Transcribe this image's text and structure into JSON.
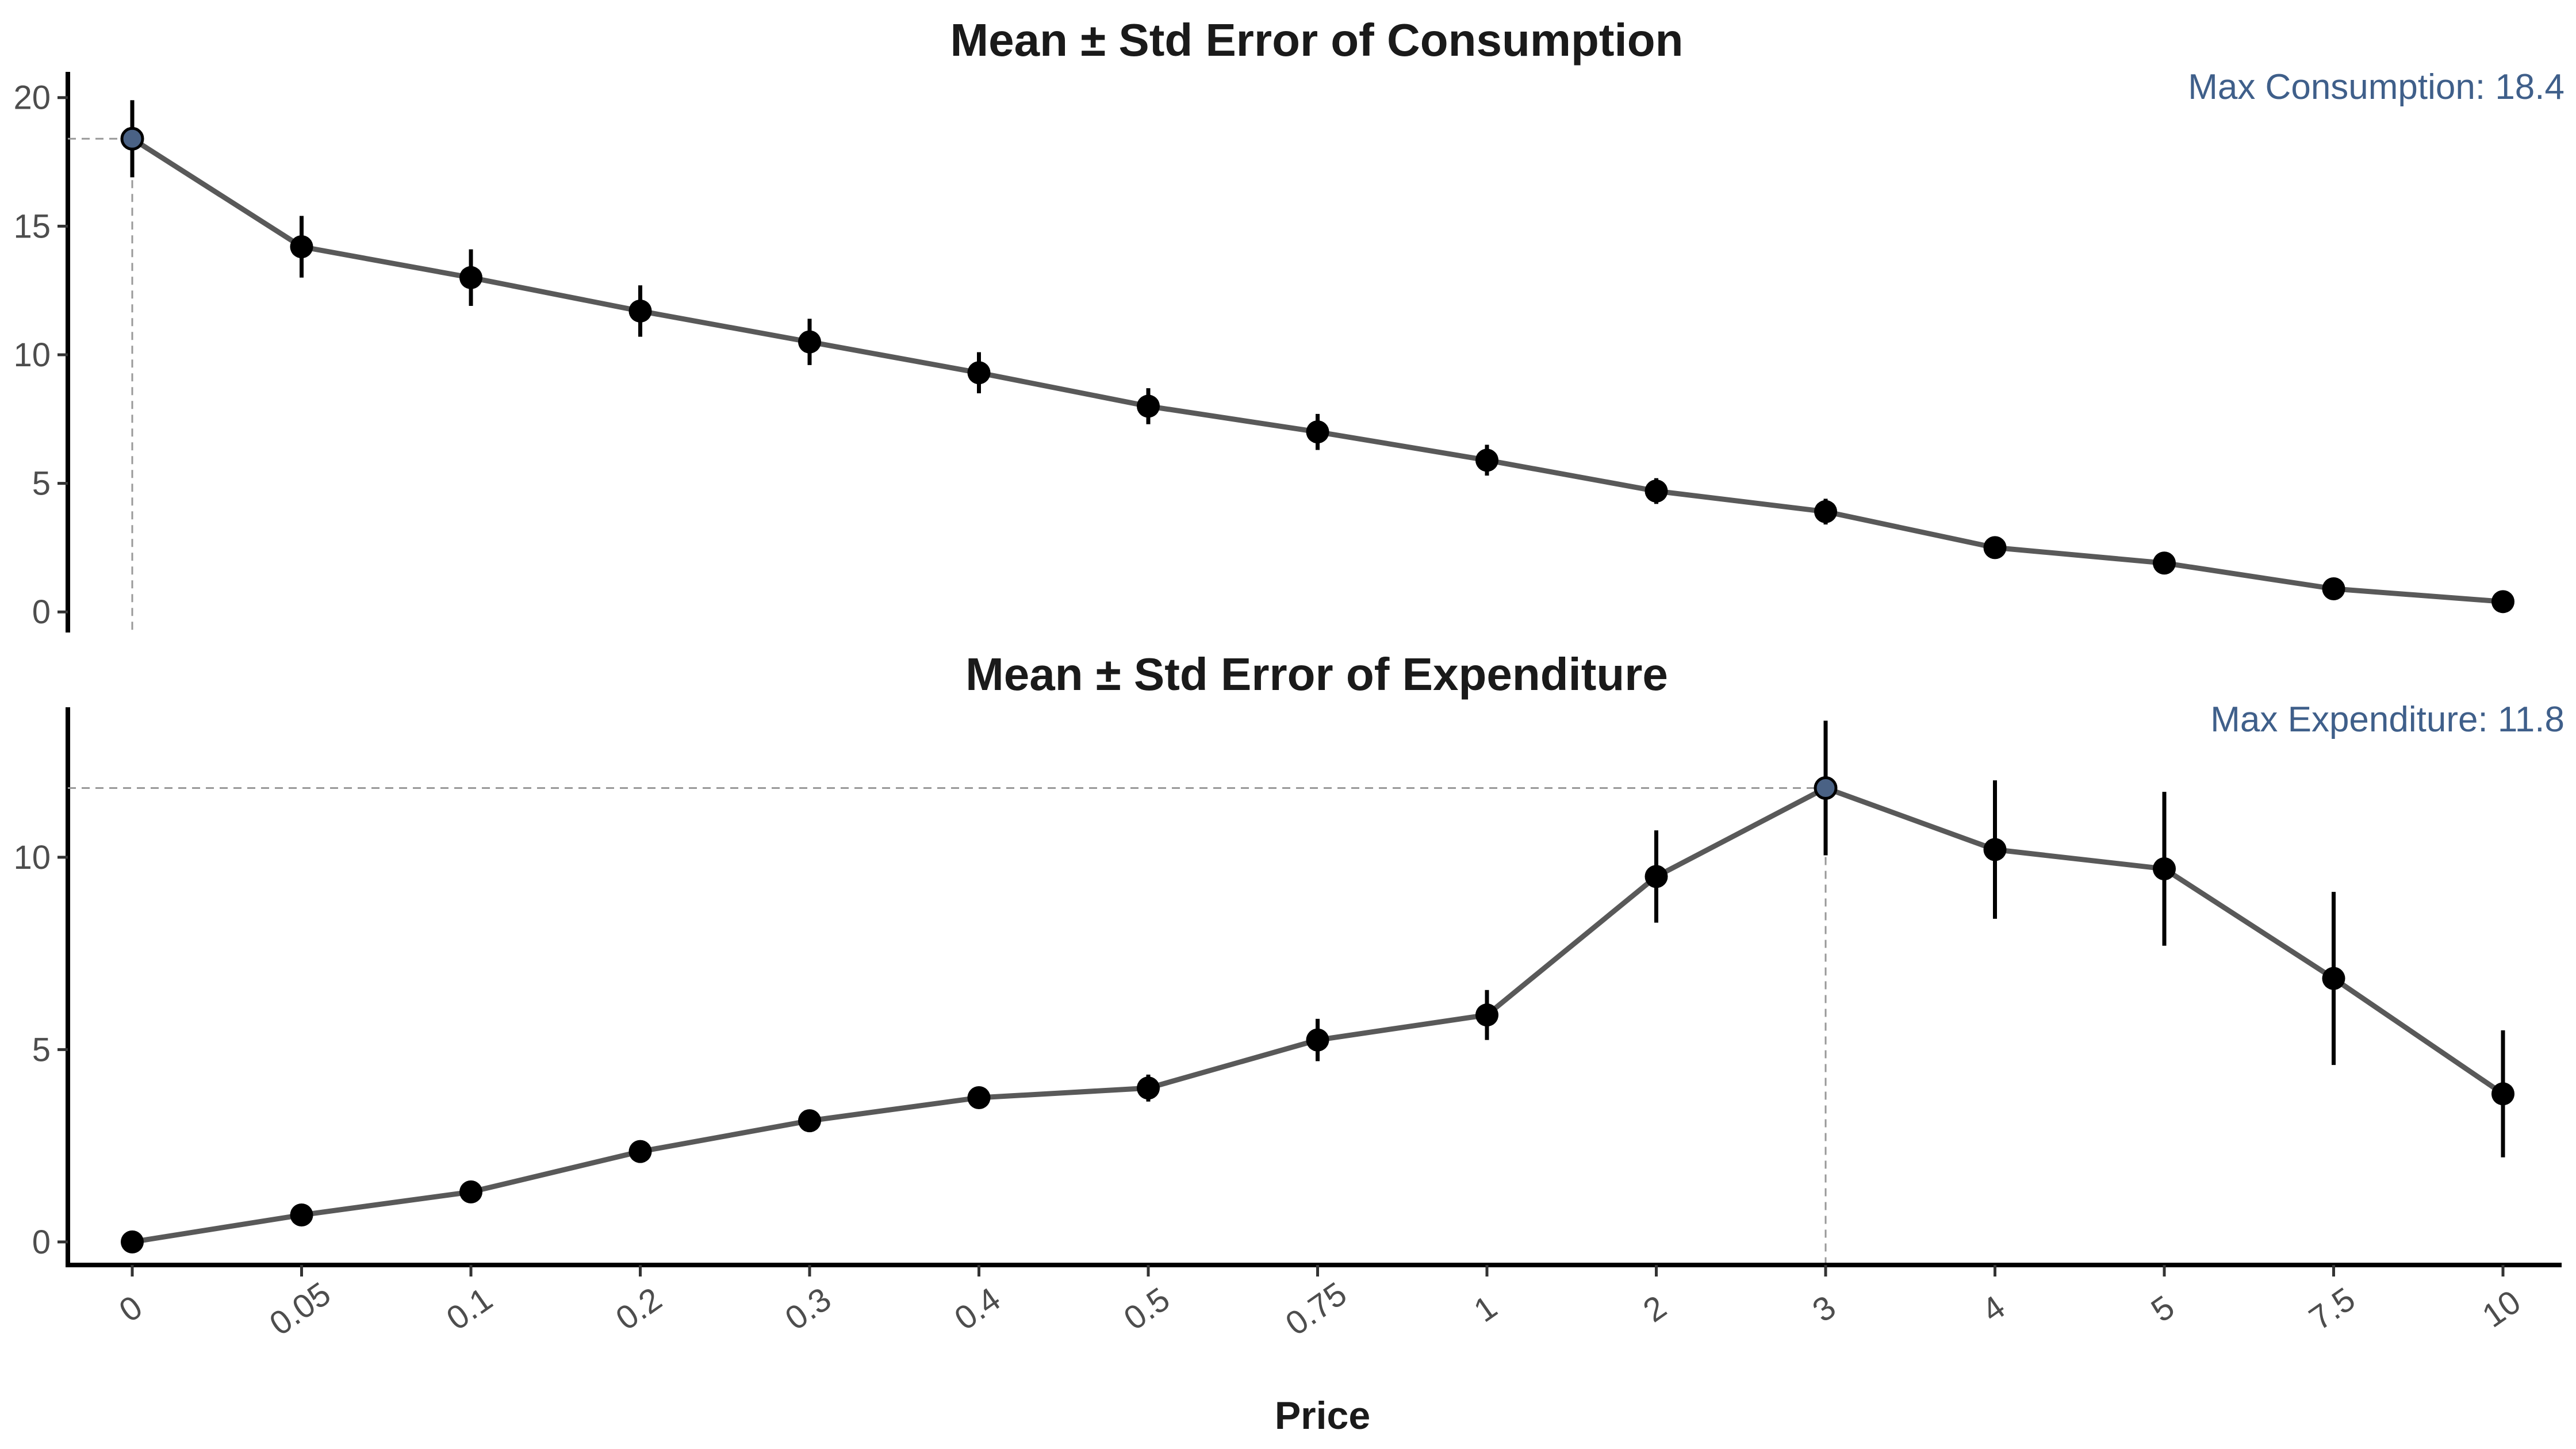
{
  "chart_data": [
    {
      "type": "line",
      "title": "Mean ± Std Error of Consumption",
      "annotation": "Max Consumption: 18.4",
      "categories": [
        "0",
        "0.05",
        "0.1",
        "0.2",
        "0.3",
        "0.4",
        "0.5",
        "0.75",
        "1",
        "2",
        "3",
        "4",
        "5",
        "7.5",
        "10"
      ],
      "values": [
        18.4,
        14.2,
        13.0,
        11.7,
        10.5,
        9.3,
        8.0,
        7.0,
        5.9,
        4.7,
        3.9,
        2.5,
        1.9,
        0.9,
        0.4
      ],
      "errors": [
        1.5,
        1.2,
        1.1,
        1.0,
        0.9,
        0.8,
        0.7,
        0.7,
        0.6,
        0.5,
        0.5,
        0.2,
        0.2,
        0.1,
        0.1
      ],
      "max_index": 0,
      "yticks": [
        0,
        5,
        10,
        15,
        20
      ],
      "ylim": [
        -0.8,
        21
      ]
    },
    {
      "type": "line",
      "title": "Mean ± Std Error of Expenditure",
      "annotation": "Max Expenditure: 11.8",
      "categories": [
        "0",
        "0.05",
        "0.1",
        "0.2",
        "0.3",
        "0.4",
        "0.5",
        "0.75",
        "1",
        "2",
        "3",
        "4",
        "5",
        "7.5",
        "10"
      ],
      "values": [
        0.0,
        0.7,
        1.3,
        2.35,
        3.15,
        3.75,
        4.0,
        5.25,
        5.9,
        9.5,
        11.8,
        10.2,
        9.7,
        6.85,
        3.85
      ],
      "errors": [
        0.05,
        0.1,
        0.15,
        0.2,
        0.15,
        0.2,
        0.35,
        0.55,
        0.65,
        1.2,
        1.75,
        1.8,
        2.0,
        2.25,
        1.65
      ],
      "max_index": 10,
      "yticks": [
        0,
        5,
        10
      ],
      "ylim": [
        -0.6,
        13.9
      ]
    }
  ],
  "x_axis": {
    "label": "Price"
  }
}
